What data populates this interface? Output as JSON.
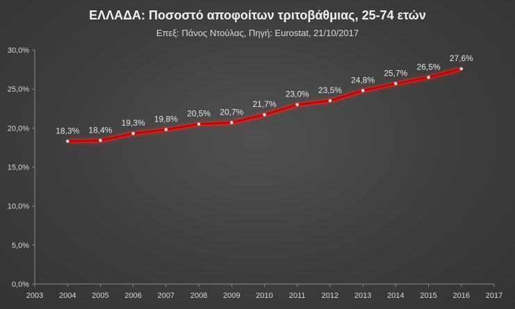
{
  "header": {
    "title": "ΕΛΛΑΔΑ: Ποσοστό  αποφοίτων τριτοβάθμιας,  25-74 ετών",
    "subtitle": "Επεξ: Πάνος Ντούλας, Πηγή: Eurostat, 21/10/2017"
  },
  "colors": {
    "background": "#3c3c3c",
    "line": "#c00000",
    "glow": "#ff2020",
    "marker": "#d9d9d9",
    "axis": "#8c8c8c",
    "grid": "#595959"
  },
  "chart_data": {
    "type": "line",
    "title": "ΕΛΛΑΔΑ: Ποσοστό  αποφοίτων τριτοβάθμιας,  25-74 ετών",
    "subtitle": "Επεξ: Πάνος Ντούλας, Πηγή: Eurostat, 21/10/2017",
    "xlabel": "",
    "ylabel": "",
    "xlim": [
      2003,
      2017
    ],
    "ylim": [
      0,
      30
    ],
    "x_ticks": [
      2003,
      2004,
      2005,
      2006,
      2007,
      2008,
      2009,
      2010,
      2011,
      2012,
      2013,
      2014,
      2015,
      2016,
      2017
    ],
    "y_ticks": [
      0,
      5,
      10,
      15,
      20,
      25,
      30
    ],
    "y_tick_labels": [
      "0,0%",
      "5,0%",
      "10,0%",
      "15,0%",
      "20,0%",
      "25,0%",
      "30,0%"
    ],
    "grid": false,
    "legend": "none",
    "series": [
      {
        "x": [
          2004,
          2005,
          2006,
          2007,
          2008,
          2009,
          2010,
          2011,
          2012,
          2013,
          2014,
          2015,
          2016
        ],
        "values": [
          18.3,
          18.4,
          19.3,
          19.8,
          20.5,
          20.7,
          21.7,
          23.0,
          23.5,
          24.8,
          25.7,
          26.5,
          27.6
        ],
        "labels": [
          "18,3%",
          "18,4%",
          "19,3%",
          "19,8%",
          "20,5%",
          "20,7%",
          "21,7%",
          "23,0%",
          "23,5%",
          "24,8%",
          "25,7%",
          "26,5%",
          "27,6%"
        ]
      }
    ]
  }
}
